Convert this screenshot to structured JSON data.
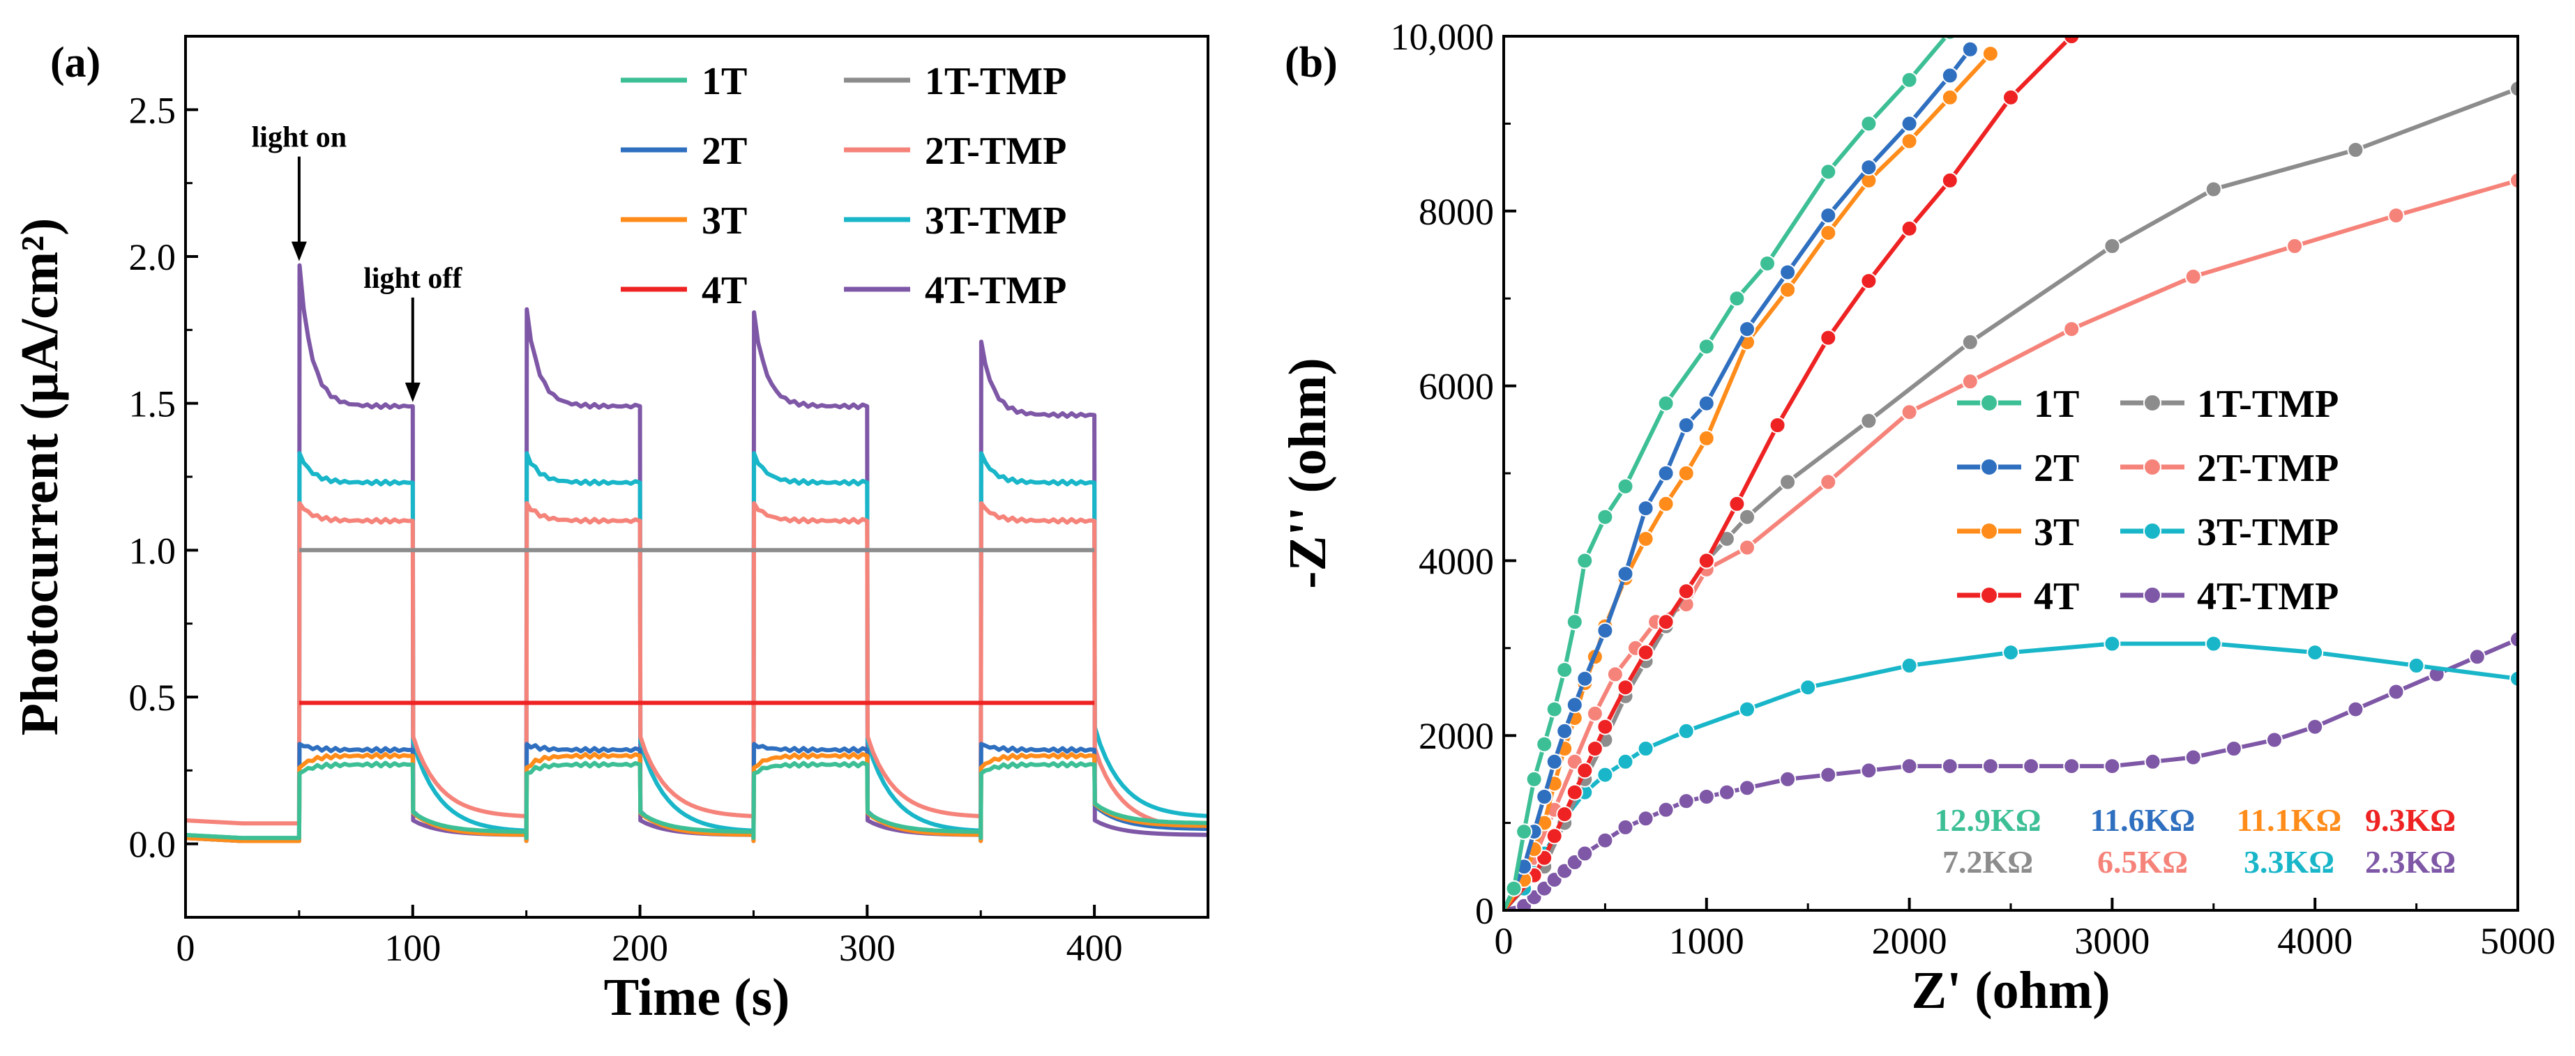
{
  "chart_data": [
    {
      "type": "line",
      "panel": "(a)",
      "xlabel": "Time (s)",
      "ylabel": "Photocurrent (µA/cm²)",
      "xlim": [
        0,
        450
      ],
      "ylim": [
        -0.25,
        2.75
      ],
      "xticks": [
        0,
        100,
        200,
        300,
        400
      ],
      "yticks": [
        0.0,
        0.5,
        1.0,
        1.5,
        2.0,
        2.5
      ],
      "ytick_labels": [
        "0.0",
        "0.5",
        "1.0",
        "1.5",
        "2.0",
        "2.5"
      ],
      "annotations": [
        {
          "text": "light on",
          "x": 50,
          "y": 1.97
        },
        {
          "text": "light off",
          "x": 100,
          "y": 1.49
        }
      ],
      "light_periods": [
        [
          50,
          100
        ],
        [
          150,
          200
        ],
        [
          250,
          300
        ],
        [
          350,
          400
        ]
      ],
      "legend_position": "top-right",
      "series": [
        {
          "name": "1T",
          "color": "#3dbf95",
          "dark": 0.02,
          "on_peak": 0.24,
          "on_plateau": 0.27,
          "end_dark": 0.07
        },
        {
          "name": "2T",
          "color": "#2f6fbf",
          "dark": 0.01,
          "on_peak": 0.34,
          "on_plateau": 0.32,
          "end_dark": 0.05
        },
        {
          "name": "3T",
          "color": "#ff8c1a",
          "dark": 0.01,
          "on_peak": 0.26,
          "on_plateau": 0.3,
          "end_dark": 0.06
        },
        {
          "name": "4T",
          "color": "#ee2222",
          "dark": 0.48,
          "on_peak": 0.48,
          "on_plateau": 0.48,
          "end_dark": 0.48,
          "constant": true
        },
        {
          "name": "1T-TMP",
          "color": "#8c8c8c",
          "dark": 1.0,
          "on_peak": 1.0,
          "on_plateau": 1.0,
          "end_dark": 1.0,
          "constant": true
        },
        {
          "name": "2T-TMP",
          "color": "#f5837a",
          "dark": 0.07,
          "on_peak": 1.16,
          "on_plateau": 1.1,
          "end_dark": 0.05
        },
        {
          "name": "3T-TMP",
          "color": "#18b6c8",
          "dark": 0.02,
          "on_peak": 1.33,
          "on_plateau": 1.23,
          "end_dark": 0.09
        },
        {
          "name": "4T-TMP",
          "color": "#7e57a6",
          "dark": 0.01,
          "on_peak": 1.97,
          "on_plateau": 1.49,
          "end_dark": 0.03,
          "peaks": [
            1.97,
            1.82,
            1.81,
            1.71
          ],
          "plateaus": [
            1.49,
            1.49,
            1.49,
            1.46
          ]
        }
      ]
    },
    {
      "type": "line",
      "panel": "(b)",
      "xlabel": "Z' (ohm)",
      "ylabel": "-Z'' (ohm)",
      "xlim": [
        0,
        5000
      ],
      "ylim": [
        0,
        10000
      ],
      "xticks": [
        0,
        1000,
        2000,
        3000,
        4000,
        5000
      ],
      "yticks": [
        0,
        2000,
        4000,
        6000,
        8000,
        10000
      ],
      "ytick_labels": [
        "0",
        "2000",
        "4000",
        "6000",
        "8000",
        "10,000"
      ],
      "legend_position": "center-right",
      "resistance_labels": [
        {
          "text": "12.9KΩ",
          "color": "#3dbf95"
        },
        {
          "text": "11.6KΩ",
          "color": "#2f6fbf"
        },
        {
          "text": "11.1KΩ",
          "color": "#ff8c1a"
        },
        {
          "text": "9.3KΩ",
          "color": "#ee2222"
        },
        {
          "text": "7.2KΩ",
          "color": "#8c8c8c"
        },
        {
          "text": "6.5KΩ",
          "color": "#f5837a"
        },
        {
          "text": "3.3KΩ",
          "color": "#18b6c8"
        },
        {
          "text": "2.3KΩ",
          "color": "#7e57a6"
        }
      ],
      "series": [
        {
          "name": "1T",
          "color": "#3dbf95",
          "x": [
            50,
            100,
            150,
            200,
            250,
            300,
            350,
            400,
            500,
            600,
            800,
            1000,
            1150,
            1300,
            1600,
            1800,
            2000,
            2200
          ],
          "y": [
            250,
            900,
            1500,
            1900,
            2300,
            2750,
            3300,
            4000,
            4500,
            4850,
            5800,
            6450,
            7000,
            7400,
            8450,
            9000,
            9500,
            10050
          ]
        },
        {
          "name": "2T",
          "color": "#2f6fbf",
          "x": [
            100,
            150,
            200,
            250,
            300,
            350,
            400,
            500,
            600,
            700,
            800,
            900,
            1000,
            1200,
            1400,
            1600,
            1800,
            2000,
            2200,
            2300
          ],
          "y": [
            500,
            900,
            1300,
            1700,
            2050,
            2350,
            2650,
            3200,
            3850,
            4600,
            5000,
            5550,
            5800,
            6650,
            7300,
            7950,
            8500,
            9000,
            9550,
            9850
          ]
        },
        {
          "name": "3T",
          "color": "#ff8c1a",
          "x": [
            100,
            150,
            200,
            250,
            300,
            350,
            400,
            450,
            500,
            600,
            700,
            800,
            900,
            1000,
            1200,
            1400,
            1600,
            1800,
            2000,
            2200,
            2400
          ],
          "y": [
            350,
            700,
            1000,
            1450,
            1850,
            2200,
            2600,
            2900,
            3250,
            3800,
            4250,
            4650,
            5000,
            5400,
            6500,
            7100,
            7750,
            8350,
            8800,
            9300,
            9800
          ]
        },
        {
          "name": "4T",
          "color": "#ee2222",
          "x": [
            150,
            200,
            250,
            300,
            350,
            400,
            450,
            500,
            600,
            700,
            800,
            900,
            1000,
            1150,
            1350,
            1600,
            1800,
            2000,
            2200,
            2500,
            2800
          ],
          "y": [
            400,
            600,
            850,
            1100,
            1350,
            1600,
            1850,
            2100,
            2550,
            2950,
            3300,
            3650,
            4000,
            4650,
            5550,
            6550,
            7200,
            7800,
            8350,
            9300,
            10000
          ]
        },
        {
          "name": "1T-TMP",
          "color": "#8c8c8c",
          "x": [
            200,
            300,
            400,
            500,
            600,
            700,
            800,
            900,
            1000,
            1100,
            1200,
            1400,
            1800,
            2300,
            3000,
            3500,
            4200,
            5000
          ],
          "y": [
            500,
            1000,
            1500,
            1950,
            2450,
            2850,
            3250,
            3650,
            4000,
            4250,
            4500,
            4900,
            5600,
            6500,
            7600,
            8250,
            8700,
            9400
          ]
        },
        {
          "name": "2T-TMP",
          "color": "#f5837a",
          "x": [
            150,
            250,
            350,
            450,
            550,
            650,
            750,
            900,
            1000,
            1200,
            1600,
            2000,
            2300,
            2800,
            3400,
            3900,
            4400,
            5000
          ],
          "y": [
            600,
            1150,
            1700,
            2250,
            2700,
            3000,
            3300,
            3500,
            3900,
            4150,
            4900,
            5700,
            6050,
            6650,
            7250,
            7600,
            7950,
            8350
          ]
        },
        {
          "name": "3T-TMP",
          "color": "#18b6c8",
          "x": [
            100,
            150,
            200,
            250,
            300,
            400,
            500,
            600,
            700,
            900,
            1200,
            1500,
            2000,
            2500,
            3000,
            3500,
            4000,
            4500,
            5000
          ],
          "y": [
            250,
            450,
            650,
            850,
            1050,
            1350,
            1550,
            1700,
            1850,
            2050,
            2300,
            2550,
            2800,
            2950,
            3050,
            3050,
            2950,
            2800,
            2650
          ]
        },
        {
          "name": "4T-TMP",
          "color": "#7e57a6",
          "x": [
            100,
            150,
            200,
            250,
            300,
            350,
            400,
            500,
            600,
            700,
            800,
            900,
            1000,
            1100,
            1200,
            1400,
            1600,
            1800,
            2000,
            2200,
            2400,
            2600,
            2800,
            3000,
            3200,
            3400,
            3600,
            3800,
            4000,
            4200,
            4400,
            4600,
            4800,
            5000
          ],
          "y": [
            50,
            150,
            250,
            350,
            450,
            550,
            650,
            800,
            950,
            1050,
            1150,
            1250,
            1300,
            1350,
            1400,
            1500,
            1550,
            1600,
            1650,
            1650,
            1650,
            1650,
            1650,
            1650,
            1700,
            1750,
            1850,
            1950,
            2100,
            2300,
            2500,
            2700,
            2900,
            3100
          ]
        }
      ]
    }
  ]
}
